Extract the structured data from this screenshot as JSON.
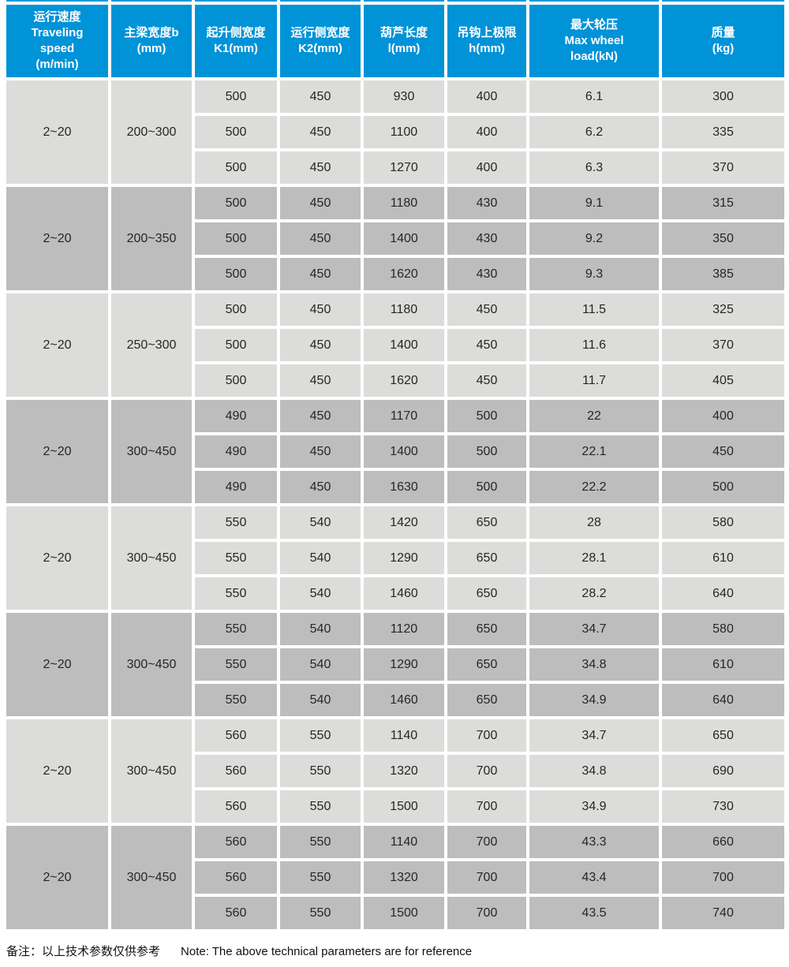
{
  "theme": {
    "header_bg": "#0093d8",
    "header_text": "#ffffff",
    "row_light_bg": "#dcdcda",
    "row_dark_bg": "#bdbdbd",
    "cell_text": "#262626",
    "top_strip_color": "#129bd9",
    "note_text": "#111111"
  },
  "table": {
    "columns": [
      {
        "id": "traveling_speed",
        "label": "运行速度\nTraveling\nspeed\n(m/min)"
      },
      {
        "id": "beam_width",
        "label": "主梁宽度b\n(mm)"
      },
      {
        "id": "k1",
        "label": "起升侧宽度\nK1(mm)"
      },
      {
        "id": "k2",
        "label": "运行侧宽度\nK2(mm)"
      },
      {
        "id": "hoist_length",
        "label": "葫芦长度\nl(mm)"
      },
      {
        "id": "hook_upper_limit",
        "label": "吊钩上极限\nh(mm)"
      },
      {
        "id": "max_wheel_load",
        "label": "最大轮压\nMax wheel\nload(kN)"
      },
      {
        "id": "mass",
        "label": "质量\n(kg)"
      }
    ],
    "groups": [
      {
        "traveling_speed": "2~20",
        "beam_width": "200~300",
        "shade": "light",
        "rows": [
          [
            "500",
            "450",
            "930",
            "400",
            "6.1",
            "300"
          ],
          [
            "500",
            "450",
            "1100",
            "400",
            "6.2",
            "335"
          ],
          [
            "500",
            "450",
            "1270",
            "400",
            "6.3",
            "370"
          ]
        ]
      },
      {
        "traveling_speed": "2~20",
        "beam_width": "200~350",
        "shade": "dark",
        "rows": [
          [
            "500",
            "450",
            "1180",
            "430",
            "9.1",
            "315"
          ],
          [
            "500",
            "450",
            "1400",
            "430",
            "9.2",
            "350"
          ],
          [
            "500",
            "450",
            "1620",
            "430",
            "9.3",
            "385"
          ]
        ]
      },
      {
        "traveling_speed": "2~20",
        "beam_width": "250~300",
        "shade": "light",
        "rows": [
          [
            "500",
            "450",
            "1180",
            "450",
            "11.5",
            "325"
          ],
          [
            "500",
            "450",
            "1400",
            "450",
            "11.6",
            "370"
          ],
          [
            "500",
            "450",
            "1620",
            "450",
            "11.7",
            "405"
          ]
        ]
      },
      {
        "traveling_speed": "2~20",
        "beam_width": "300~450",
        "shade": "dark",
        "rows": [
          [
            "490",
            "450",
            "1170",
            "500",
            "22",
            "400"
          ],
          [
            "490",
            "450",
            "1400",
            "500",
            "22.1",
            "450"
          ],
          [
            "490",
            "450",
            "1630",
            "500",
            "22.2",
            "500"
          ]
        ]
      },
      {
        "traveling_speed": "2~20",
        "beam_width": "300~450",
        "shade": "light",
        "rows": [
          [
            "550",
            "540",
            "1420",
            "650",
            "28",
            "580"
          ],
          [
            "550",
            "540",
            "1290",
            "650",
            "28.1",
            "610"
          ],
          [
            "550",
            "540",
            "1460",
            "650",
            "28.2",
            "640"
          ]
        ]
      },
      {
        "traveling_speed": "2~20",
        "beam_width": "300~450",
        "shade": "dark",
        "rows": [
          [
            "550",
            "540",
            "1120",
            "650",
            "34.7",
            "580"
          ],
          [
            "550",
            "540",
            "1290",
            "650",
            "34.8",
            "610"
          ],
          [
            "550",
            "540",
            "1460",
            "650",
            "34.9",
            "640"
          ]
        ]
      },
      {
        "traveling_speed": "2~20",
        "beam_width": "300~450",
        "shade": "light",
        "rows": [
          [
            "560",
            "550",
            "1140",
            "700",
            "34.7",
            "650"
          ],
          [
            "560",
            "550",
            "1320",
            "700",
            "34.8",
            "690"
          ],
          [
            "560",
            "550",
            "1500",
            "700",
            "34.9",
            "730"
          ]
        ]
      },
      {
        "traveling_speed": "2~20",
        "beam_width": "300~450",
        "shade": "dark",
        "rows": [
          [
            "560",
            "550",
            "1140",
            "700",
            "43.3",
            "660"
          ],
          [
            "560",
            "550",
            "1320",
            "700",
            "43.4",
            "700"
          ],
          [
            "560",
            "550",
            "1500",
            "700",
            "43.5",
            "740"
          ]
        ]
      }
    ]
  },
  "note": {
    "zh": "备注：以上技术参数仅供参考",
    "en": "Note: The above technical parameters are for reference"
  }
}
